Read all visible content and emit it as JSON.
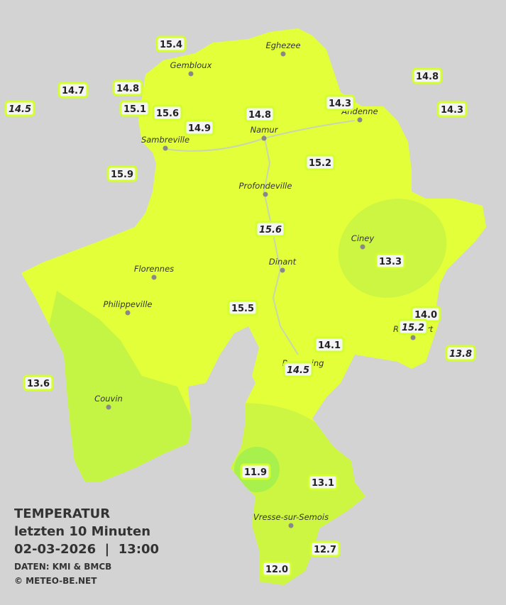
{
  "header": {
    "title": "TEMPERATUR",
    "subtitle": "letzten 10 Minuten",
    "datetime": "02-03-2026  |  13:00",
    "source": "DATEN: KMI & BMCB",
    "copyright": "© METEO-BE.NET"
  },
  "cities": [
    {
      "name": "Eghezee"
    },
    {
      "name": "Gembloux"
    },
    {
      "name": "Andenne"
    },
    {
      "name": "Namur"
    },
    {
      "name": "Sambreville"
    },
    {
      "name": "Profondeville"
    },
    {
      "name": "Ciney"
    },
    {
      "name": "Dinant"
    },
    {
      "name": "Florennes"
    },
    {
      "name": "Philippeville"
    },
    {
      "name": "Couvin"
    },
    {
      "name": "Rochefort"
    },
    {
      "name": "Beauraing"
    },
    {
      "name": "Vresse-sur-Semois"
    }
  ],
  "stations": [
    {
      "label": "15.4",
      "italic": false
    },
    {
      "label": "14.7",
      "italic": false
    },
    {
      "label": "14.8",
      "italic": false
    },
    {
      "label": "14.5",
      "italic": true
    },
    {
      "label": "15.1",
      "italic": false
    },
    {
      "label": "15.6",
      "italic": false
    },
    {
      "label": "14.9",
      "italic": false
    },
    {
      "label": "14.8",
      "italic": false
    },
    {
      "label": "14.3",
      "italic": false
    },
    {
      "label": "14.8",
      "italic": false
    },
    {
      "label": "14.3",
      "italic": false
    },
    {
      "label": "15.9",
      "italic": false
    },
    {
      "label": "15.2",
      "italic": false
    },
    {
      "label": "15.6",
      "italic": true
    },
    {
      "label": "13.3",
      "italic": false
    },
    {
      "label": "15.5",
      "italic": false
    },
    {
      "label": "14.0",
      "italic": false
    },
    {
      "label": "15.2",
      "italic": true
    },
    {
      "label": "14.1",
      "italic": false
    },
    {
      "label": "13.8",
      "italic": true
    },
    {
      "label": "14.5",
      "italic": true
    },
    {
      "label": "13.6",
      "italic": false
    },
    {
      "label": "11.9",
      "italic": false
    },
    {
      "label": "13.1",
      "italic": false
    },
    {
      "label": "12.7",
      "italic": false
    },
    {
      "label": "12.0",
      "italic": false
    }
  ]
}
